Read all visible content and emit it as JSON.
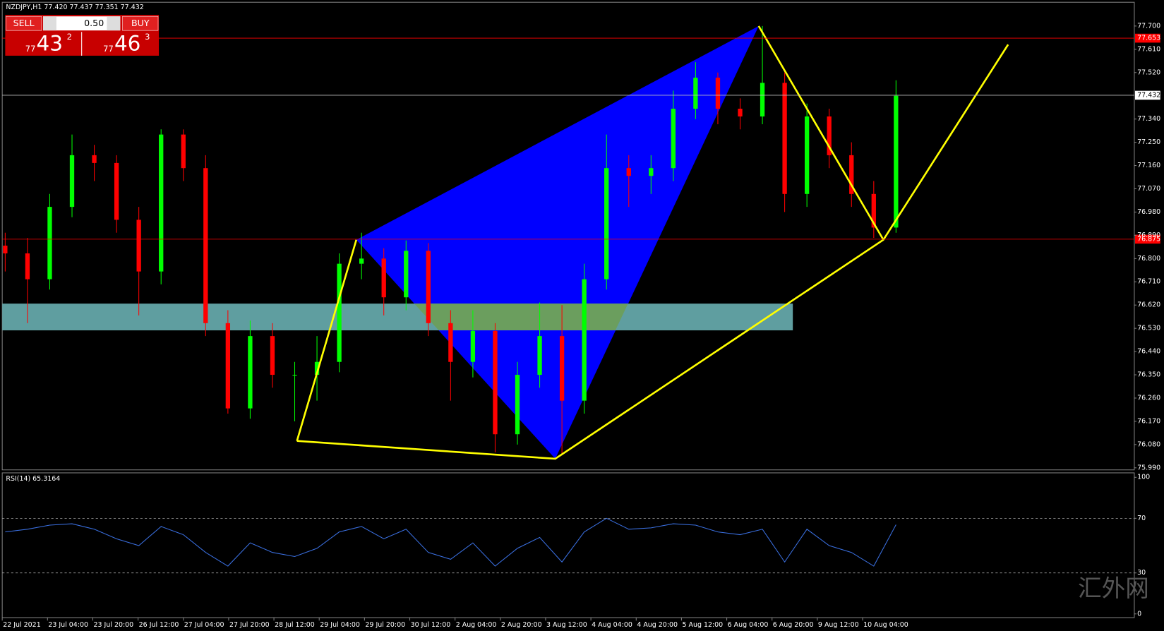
{
  "header": {
    "symbol_line": "NZDJPY,H1  77.420 77.437 77.351 77.432"
  },
  "trade_panel": {
    "sell": {
      "label": "SELL",
      "price_prefix": "77",
      "price_main": "43",
      "price_suffix": "2"
    },
    "lot": "0.50",
    "buy": {
      "label": "BUY",
      "price_prefix": "77",
      "price_main": "46",
      "price_suffix": "3"
    }
  },
  "chart_data": [
    {
      "type": "candlestick",
      "open": [
        76.85,
        76.82,
        76.72,
        77.0,
        77.2,
        77.17,
        76.95,
        76.75,
        77.28,
        77.15,
        76.55,
        76.22,
        76.5,
        76.35,
        76.35,
        76.4,
        76.78,
        76.8,
        76.65,
        76.83,
        76.55,
        76.4,
        76.52,
        76.12,
        76.35,
        76.5,
        76.25,
        76.72,
        77.15,
        77.12,
        77.15,
        77.38,
        77.5,
        77.38,
        77.35,
        77.48,
        77.05,
        77.35,
        77.2,
        77.05,
        76.92
      ],
      "high": [
        76.9,
        76.88,
        77.05,
        77.28,
        77.24,
        77.2,
        77.0,
        77.3,
        77.3,
        77.2,
        76.6,
        76.56,
        76.55,
        76.4,
        76.5,
        76.82,
        76.9,
        76.84,
        76.87,
        76.86,
        76.6,
        76.6,
        76.55,
        76.4,
        76.63,
        76.62,
        76.78,
        77.28,
        77.2,
        77.2,
        77.45,
        77.56,
        77.52,
        77.42,
        77.7,
        77.52,
        77.4,
        77.38,
        77.25,
        77.1,
        77.49
      ],
      "low": [
        76.75,
        76.55,
        76.68,
        76.96,
        77.1,
        76.9,
        76.58,
        76.7,
        77.1,
        76.5,
        76.2,
        76.18,
        76.3,
        76.17,
        76.25,
        76.36,
        76.72,
        76.58,
        76.6,
        76.5,
        76.25,
        76.34,
        76.05,
        76.08,
        76.3,
        76.04,
        76.2,
        76.68,
        77.0,
        77.05,
        77.1,
        77.34,
        77.32,
        77.3,
        77.32,
        76.98,
        77.0,
        77.15,
        77.0,
        76.88,
        76.9
      ],
      "close": [
        76.82,
        76.72,
        77.0,
        77.2,
        77.17,
        76.95,
        76.75,
        77.28,
        77.15,
        76.55,
        76.22,
        76.5,
        76.35,
        76.35,
        76.4,
        76.78,
        76.8,
        76.65,
        76.83,
        76.55,
        76.4,
        76.52,
        76.12,
        76.35,
        76.5,
        76.25,
        76.72,
        77.15,
        77.12,
        77.15,
        77.38,
        77.5,
        77.38,
        77.35,
        77.48,
        77.05,
        77.35,
        77.2,
        77.05,
        76.92,
        77.43
      ],
      "up_color": "#00ff00",
      "down_color": "#ff0000",
      "ylim": [
        75.982,
        77.792
      ],
      "yticks": [
        {
          "value": 77.7,
          "label": "77.700"
        },
        {
          "value": 77.61,
          "label": "77.610"
        },
        {
          "value": 77.52,
          "label": "77.520"
        },
        {
          "value": 77.34,
          "label": "77.340"
        },
        {
          "value": 77.25,
          "label": "77.250"
        },
        {
          "value": 77.16,
          "label": "77.160"
        },
        {
          "value": 77.07,
          "label": "77.070"
        },
        {
          "value": 76.98,
          "label": "76.980"
        },
        {
          "value": 76.89,
          "label": "76.890"
        },
        {
          "value": 76.8,
          "label": "76.800"
        },
        {
          "value": 76.71,
          "label": "76.710"
        },
        {
          "value": 76.62,
          "label": "76.620"
        },
        {
          "value": 76.53,
          "label": "76.530"
        },
        {
          "value": 76.44,
          "label": "76.440"
        },
        {
          "value": 76.35,
          "label": "76.350"
        },
        {
          "value": 76.26,
          "label": "76.260"
        },
        {
          "value": 76.17,
          "label": "76.170"
        },
        {
          "value": 76.08,
          "label": "76.080"
        },
        {
          "value": 75.99,
          "label": "75.990"
        }
      ],
      "price_lines": [
        {
          "value": 77.653,
          "label": "77.653",
          "color": "#ff0000"
        },
        {
          "value": 76.875,
          "label": "76.875",
          "color": "#ff0000"
        }
      ],
      "current_price": {
        "value": 77.432,
        "label": "77.432",
        "color": "#c0c0c0"
      },
      "xtick_labels": [
        "22 Jul 2021",
        "23 Jul 04:00",
        "23 Jul 20:00",
        "26 Jul 12:00",
        "27 Jul 04:00",
        "27 Jul 20:00",
        "28 Jul 12:00",
        "29 Jul 04:00",
        "29 Jul 20:00",
        "30 Jul 12:00",
        "2 Aug 04:00",
        "2 Aug 20:00",
        "3 Aug 12:00",
        "4 Aug 04:00",
        "4 Aug 20:00",
        "5 Aug 12:00",
        "6 Aug 04:00",
        "6 Aug 20:00",
        "9 Aug 12:00",
        "10 Aug 04:00"
      ]
    },
    {
      "type": "line",
      "title": "RSI(14) 65.3164",
      "values": [
        60,
        62,
        65,
        66,
        62,
        55,
        50,
        64,
        58,
        45,
        35,
        52,
        45,
        42,
        48,
        60,
        64,
        55,
        62,
        45,
        40,
        52,
        35,
        48,
        56,
        38,
        60,
        70,
        62,
        63,
        66,
        65,
        60,
        58,
        62,
        38,
        62,
        50,
        45,
        35,
        65.3164
      ],
      "color": "#3a6fe0",
      "ylim": [
        0,
        100
      ],
      "yticks": [
        100,
        70,
        30,
        0
      ],
      "levels": [
        70,
        30
      ]
    }
  ],
  "watermark": "汇外网"
}
